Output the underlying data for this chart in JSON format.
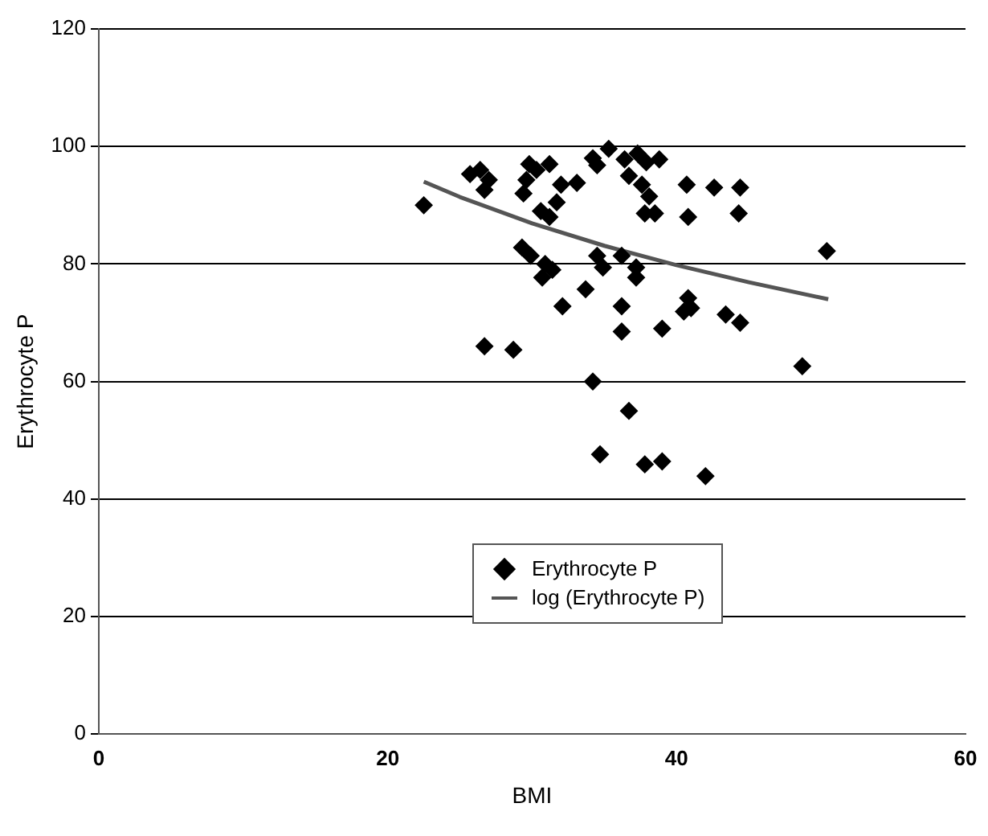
{
  "chart_data": {
    "type": "scatter",
    "xlabel": "BMI",
    "ylabel": "Erythrocyte P",
    "xlim": [
      0,
      60
    ],
    "xticks": [
      0,
      20,
      40,
      60
    ],
    "ylim": [
      0,
      120
    ],
    "yticks": [
      0,
      20,
      40,
      60,
      80,
      100,
      120
    ],
    "grid": "y",
    "legend": "bottom",
    "marker": "diamond",
    "series": [
      {
        "name": "Erythrocyte P",
        "color": "#000000",
        "x": [
          22.5,
          25.7,
          26.4,
          27,
          26.7,
          29.8,
          30.3,
          31.2,
          29.6,
          29.4,
          30.6,
          31.2,
          31.7,
          32,
          33.1,
          34.2,
          35.3,
          34.5,
          36.4,
          37.3,
          37.9,
          38.8,
          36.7,
          37.6,
          38.1,
          38.5,
          37.8,
          40.7,
          42.6,
          44.4,
          40.8,
          44.3,
          29.3,
          29.9,
          30.9,
          31.4,
          30.7,
          32.1,
          33.7,
          34.5,
          34.9,
          36.2,
          37.2,
          37.2,
          36.2,
          36.2,
          39,
          40.8,
          41,
          40.5,
          43.4,
          44.4,
          50.4,
          26.7,
          28.7,
          34.2,
          36.7,
          34.7,
          37.8,
          39,
          42,
          48.7
        ],
        "values": [
          90,
          95.3,
          96,
          94.3,
          92.6,
          97,
          96,
          97,
          94.3,
          92,
          89,
          88,
          90.5,
          93.5,
          93.8,
          98,
          99.6,
          96.8,
          97.8,
          98.8,
          97.3,
          97.8,
          95,
          93.5,
          91.5,
          88.6,
          88.6,
          93.5,
          93,
          93,
          88,
          88.6,
          82.8,
          81.4,
          80,
          79,
          77.7,
          72.8,
          75.7,
          81.4,
          79.4,
          81.4,
          79.4,
          77.7,
          72.8,
          68.5,
          69,
          74.2,
          72.5,
          71.9,
          71.4,
          70,
          82.2,
          66,
          65.4,
          60,
          55,
          47.6,
          45.9,
          46.4,
          43.9,
          62.6
        ]
      },
      {
        "name": "log (Erythrocyte P)",
        "type": "line",
        "color": "#555555",
        "marker": "none",
        "x": [
          22.5,
          25,
          30,
          35,
          40,
          45,
          50.5
        ],
        "values": [
          94,
          91.4,
          86.9,
          83.1,
          79.8,
          76.9,
          74
        ]
      }
    ]
  }
}
